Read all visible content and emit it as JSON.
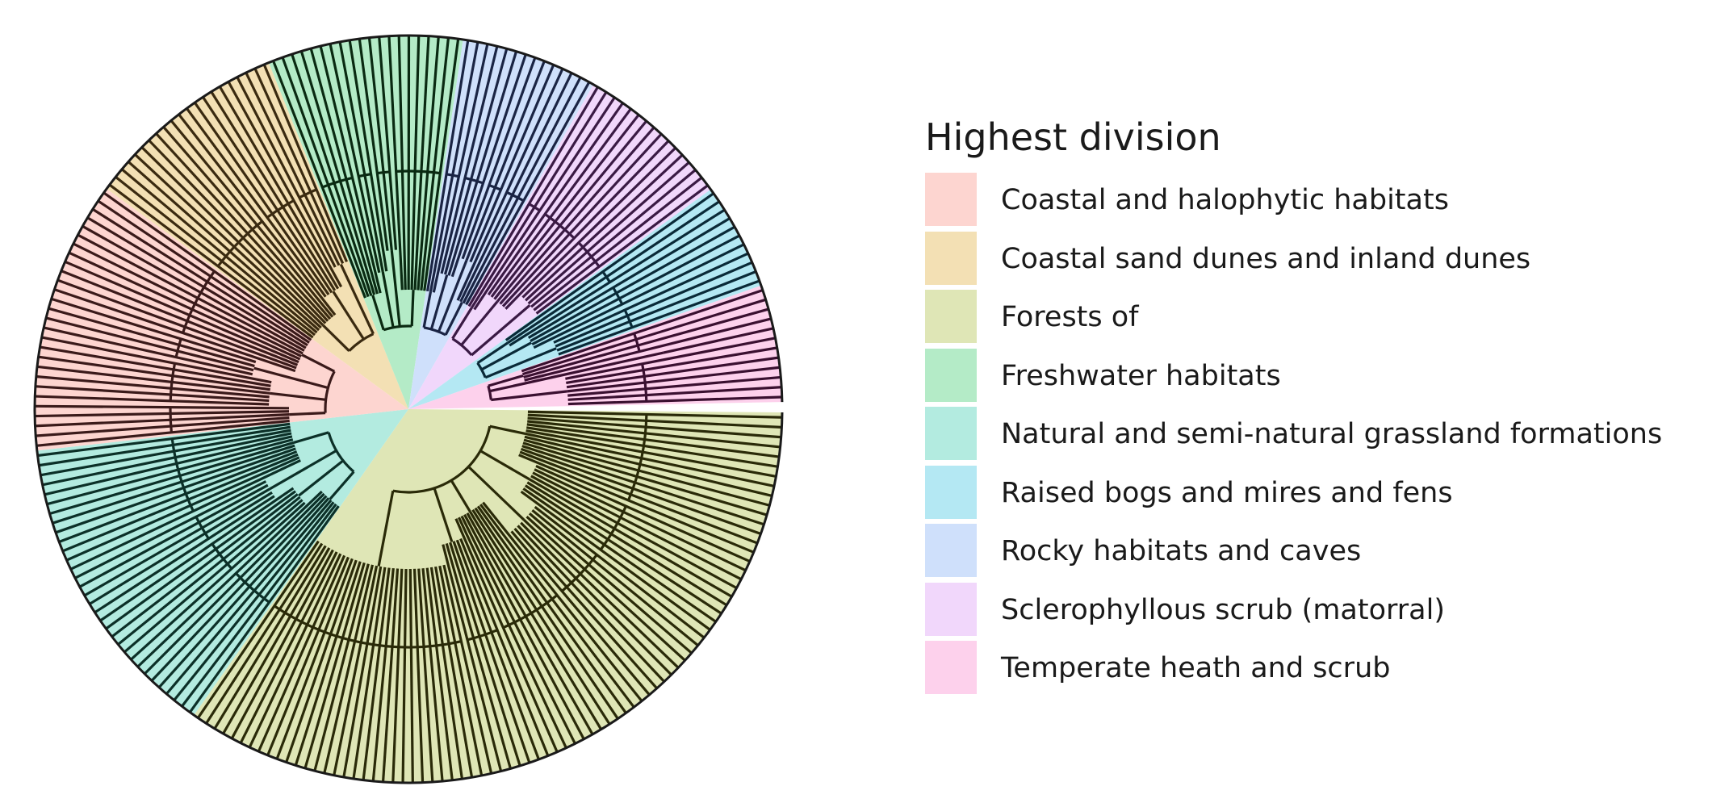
{
  "legend": {
    "title": "Highest division",
    "items": [
      {
        "label": "Coastal and halophytic habitats",
        "color": "#fdd5d0"
      },
      {
        "label": "Coastal sand dunes and inland dunes",
        "color": "#f3e0b4"
      },
      {
        "label": "Forests of",
        "color": "#dfe6b6"
      },
      {
        "label": "Freshwater habitats",
        "color": "#b4ebc7"
      },
      {
        "label": "Natural and semi-natural grassland formations",
        "color": "#b3ebe0"
      },
      {
        "label": "Raised bogs and mires and fens",
        "color": "#b4e8f3"
      },
      {
        "label": "Rocky habitats and caves",
        "color": "#cfe0fb"
      },
      {
        "label": "Sclerophyllous scrub (matorral)",
        "color": "#f1d7fb"
      },
      {
        "label": "Temperate heath and scrub",
        "color": "#fdd1ec"
      }
    ]
  },
  "tree": {
    "type": "circular-dendrogram",
    "groups": [
      {
        "name": "Forests of",
        "leaves": 82,
        "color": "#dfe6b6",
        "stroke": "#2a2a08",
        "subgroups": [
          15,
          9,
          9,
          11,
          6,
          32
        ]
      },
      {
        "name": "Natural and semi-natural grassland formations",
        "leaves": 32,
        "color": "#b3ebe0",
        "stroke": "#0c3028",
        "subgroups": [
          8,
          6,
          5,
          13
        ]
      },
      {
        "name": "Coastal and halophytic habitats",
        "leaves": 28,
        "color": "#fdd5d0",
        "stroke": "#3a1a1a",
        "subgroups": [
          5,
          7,
          4,
          12
        ]
      },
      {
        "name": "Coastal sand dunes and inland dunes",
        "leaves": 21,
        "color": "#f3e0b4",
        "stroke": "#3a2a10",
        "subgroups": [
          11,
          6,
          4
        ]
      },
      {
        "name": "Freshwater habitats",
        "leaves": 20,
        "color": "#b4ebc7",
        "stroke": "#0a2a12",
        "subgroups": [
          6,
          3,
          3,
          8
        ]
      },
      {
        "name": "Rocky habitats and caves",
        "leaves": 14,
        "color": "#cfe0fb",
        "stroke": "#1a2444",
        "subgroups": [
          3,
          4,
          3,
          4
        ]
      },
      {
        "name": "Sclerophyllous scrub (matorral)",
        "leaves": 16,
        "color": "#f1d7fb",
        "stroke": "#3a1a44",
        "subgroups": [
          3,
          7,
          6
        ]
      },
      {
        "name": "Raised bogs and mires and fens",
        "leaves": 11,
        "color": "#b4e8f3",
        "stroke": "#0a2a38",
        "subgroups": [
          3,
          4,
          4
        ]
      },
      {
        "name": "Temperate heath and scrub",
        "leaves": 12,
        "color": "#fdd1ec",
        "stroke": "#3a1030",
        "subgroups": [
          4,
          1,
          7
        ]
      }
    ]
  }
}
